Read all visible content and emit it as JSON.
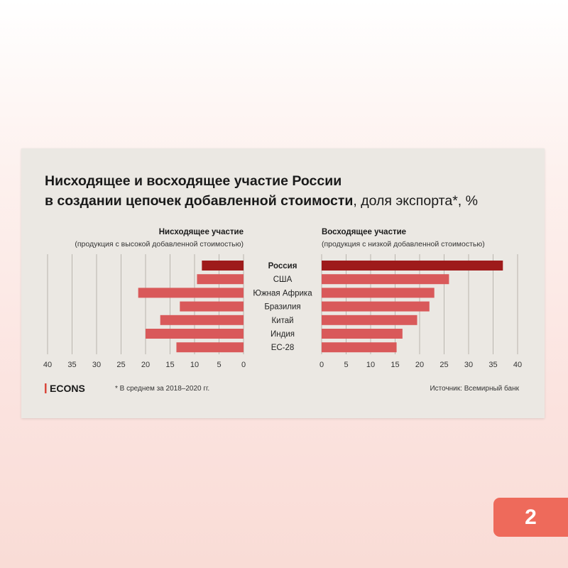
{
  "title": {
    "line1": "Нисходящее и восходящее участие России",
    "line2_bold": "в создании цепочек добавленной стоимости",
    "line2_rest": ", доля экспорта*, %"
  },
  "brand": {
    "logo": "ECONS"
  },
  "footnote": "* В среднем за 2018–2020 гг.",
  "source": "Источник: Всемирный банк",
  "page_number": "2",
  "colors": {
    "russia": "#9e1b1b",
    "others": "#d9595a"
  },
  "chart_data": [
    {
      "type": "bar",
      "orientation": "horizontal",
      "direction": "reversed",
      "title": "Нисходящее участие",
      "subtitle": "(продукция с высокой добавленной стоимостью)",
      "categories": [
        "Россия",
        "США",
        "Южная Африка",
        "Бразилия",
        "Китай",
        "Индия",
        "ЕС-28"
      ],
      "values": [
        8.5,
        9.5,
        21.5,
        13,
        17,
        20,
        13.7
      ],
      "xlim": [
        0,
        40
      ],
      "ticks": [
        "0",
        "5",
        "10",
        "15",
        "20",
        "25",
        "30",
        "35",
        "40"
      ],
      "grid": true
    },
    {
      "type": "bar",
      "orientation": "horizontal",
      "title": "Восходящее участие",
      "subtitle": "(продукция с низкой добавленной стоимостью)",
      "categories": [
        "Россия",
        "США",
        "Южная Африка",
        "Бразилия",
        "Китай",
        "Индия",
        "ЕС-28"
      ],
      "values": [
        37,
        26,
        23,
        22,
        19.5,
        16.5,
        15.3
      ],
      "xlim": [
        0,
        40
      ],
      "ticks": [
        "0",
        "5",
        "10",
        "15",
        "20",
        "25",
        "30",
        "35",
        "40"
      ],
      "grid": true
    }
  ]
}
